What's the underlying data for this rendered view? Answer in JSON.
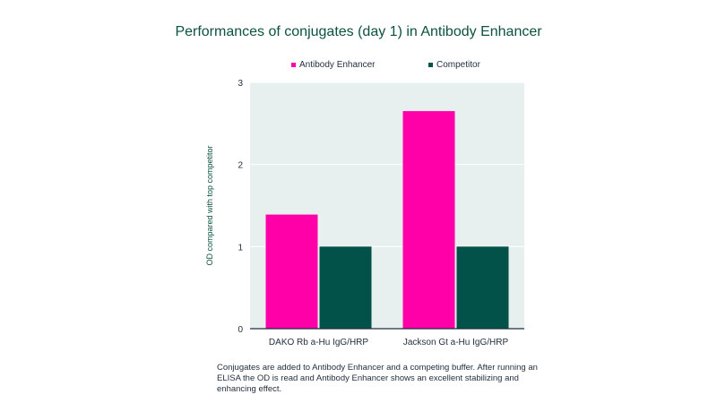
{
  "chart_data": {
    "type": "bar",
    "title": "Performances of conjugates (day 1) in Antibody Enhancer",
    "xlabel": "",
    "ylabel": "OD compared with top competitor",
    "ylim": [
      0,
      3
    ],
    "yticks": [
      "0",
      "1",
      "2",
      "3"
    ],
    "categories": [
      "DAKO Rb a-Hu IgG/HRP",
      "Jackson Gt a-Hu IgG/HRP"
    ],
    "series": [
      {
        "name": "Antibody Enhancer",
        "values": [
          1.39,
          2.65
        ],
        "color": "#ff00a8"
      },
      {
        "name": "Competitor",
        "values": [
          1.0,
          1.0
        ],
        "color": "#02524a"
      }
    ],
    "grid": true,
    "legend_position": "top",
    "plot_background": "#e8f0ef"
  },
  "caption": "Conjugates are added to Antibody Enhancer and a competing buffer. After running an ELISA the OD is read and Antibody Enhancer shows an excellent stabilizing and enhancing effect."
}
